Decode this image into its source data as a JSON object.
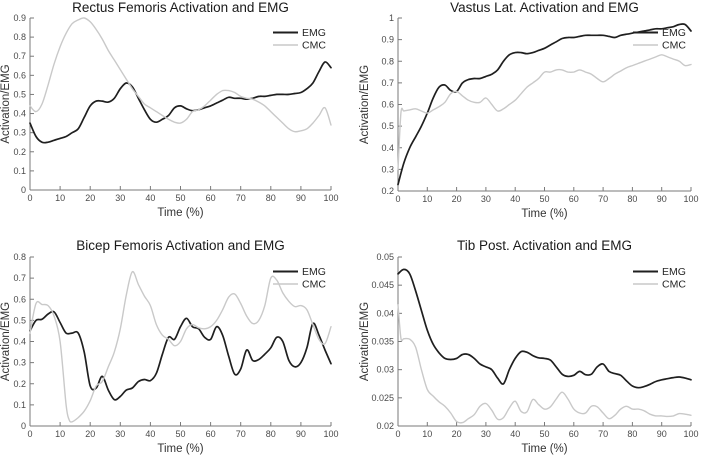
{
  "figure": {
    "background": "#ffffff",
    "layout": "2x2 grid of line charts",
    "colors": {
      "emg_line": "#1f1f1f",
      "cmc_line": "#c9c9c9",
      "axis": "#7a7a7a",
      "tick_label": "#4a4a4a",
      "title": "#1a1a1a"
    },
    "legend": {
      "position": "top-right",
      "box": false,
      "entries": [
        "EMG",
        "CMC"
      ]
    }
  },
  "chart_data": [
    {
      "type": "line",
      "title": "Rectus Femoris Activation and EMG",
      "xlabel": "Time (%)",
      "ylabel": "Activation/EMG",
      "xlim": [
        0,
        100
      ],
      "ylim": [
        0,
        0.9
      ],
      "xticks": [
        0,
        10,
        20,
        30,
        40,
        50,
        60,
        70,
        80,
        90,
        100
      ],
      "yticks": [
        0,
        0.1,
        0.2,
        0.3,
        0.4,
        0.5,
        0.6,
        0.7,
        0.8,
        0.9
      ],
      "grid": false,
      "legend_position": "top-right",
      "series": [
        {
          "name": "EMG",
          "color": "#1f1f1f",
          "x": [
            0,
            2,
            4,
            6,
            8,
            10,
            12,
            14,
            16,
            18,
            20,
            22,
            24,
            26,
            28,
            30,
            32,
            34,
            36,
            38,
            40,
            42,
            44,
            46,
            48,
            50,
            52,
            54,
            56,
            58,
            60,
            62,
            64,
            66,
            68,
            70,
            72,
            74,
            76,
            78,
            80,
            82,
            84,
            86,
            88,
            90,
            92,
            94,
            96,
            98,
            100
          ],
          "y": [
            0.35,
            0.28,
            0.25,
            0.25,
            0.26,
            0.27,
            0.28,
            0.3,
            0.32,
            0.38,
            0.44,
            0.465,
            0.465,
            0.46,
            0.48,
            0.53,
            0.56,
            0.54,
            0.48,
            0.42,
            0.37,
            0.355,
            0.37,
            0.39,
            0.43,
            0.44,
            0.425,
            0.415,
            0.42,
            0.43,
            0.44,
            0.455,
            0.47,
            0.485,
            0.48,
            0.48,
            0.475,
            0.48,
            0.49,
            0.49,
            0.495,
            0.5,
            0.5,
            0.5,
            0.505,
            0.51,
            0.53,
            0.56,
            0.62,
            0.67,
            0.64
          ]
        },
        {
          "name": "CMC",
          "color": "#c9c9c9",
          "x": [
            0,
            2,
            4,
            6,
            8,
            10,
            12,
            14,
            16,
            18,
            20,
            22,
            24,
            26,
            28,
            30,
            32,
            34,
            36,
            38,
            40,
            42,
            44,
            46,
            48,
            50,
            52,
            54,
            56,
            58,
            60,
            62,
            64,
            66,
            68,
            70,
            72,
            74,
            76,
            78,
            80,
            82,
            84,
            86,
            88,
            90,
            92,
            94,
            96,
            98,
            100
          ],
          "y": [
            0.44,
            0.41,
            0.45,
            0.55,
            0.66,
            0.75,
            0.82,
            0.87,
            0.89,
            0.9,
            0.88,
            0.84,
            0.79,
            0.73,
            0.68,
            0.63,
            0.58,
            0.53,
            0.49,
            0.45,
            0.43,
            0.41,
            0.39,
            0.37,
            0.355,
            0.35,
            0.37,
            0.41,
            0.42,
            0.44,
            0.47,
            0.5,
            0.52,
            0.52,
            0.51,
            0.49,
            0.48,
            0.475,
            0.46,
            0.44,
            0.41,
            0.38,
            0.35,
            0.32,
            0.305,
            0.31,
            0.32,
            0.35,
            0.39,
            0.43,
            0.34
          ]
        }
      ]
    },
    {
      "type": "line",
      "title": "Vastus Lat. Activation and EMG",
      "xlabel": "Time (%)",
      "ylabel": "Activation/EMG",
      "xlim": [
        0,
        100
      ],
      "ylim": [
        0.2,
        1
      ],
      "xticks": [
        0,
        10,
        20,
        30,
        40,
        50,
        60,
        70,
        80,
        90,
        100
      ],
      "yticks": [
        0.2,
        0.3,
        0.4,
        0.5,
        0.6,
        0.7,
        0.8,
        0.9,
        1
      ],
      "grid": false,
      "legend_position": "top-right",
      "series": [
        {
          "name": "EMG",
          "color": "#1f1f1f",
          "x": [
            0,
            2,
            4,
            6,
            8,
            10,
            12,
            14,
            16,
            18,
            20,
            22,
            24,
            26,
            28,
            30,
            32,
            34,
            36,
            38,
            40,
            42,
            44,
            46,
            48,
            50,
            52,
            54,
            56,
            58,
            60,
            62,
            64,
            66,
            68,
            70,
            72,
            74,
            76,
            78,
            80,
            82,
            84,
            86,
            88,
            90,
            92,
            94,
            96,
            98,
            100
          ],
          "y": [
            0.23,
            0.33,
            0.4,
            0.45,
            0.5,
            0.56,
            0.63,
            0.68,
            0.69,
            0.665,
            0.66,
            0.7,
            0.715,
            0.72,
            0.72,
            0.73,
            0.74,
            0.76,
            0.8,
            0.83,
            0.84,
            0.84,
            0.835,
            0.84,
            0.85,
            0.86,
            0.875,
            0.89,
            0.905,
            0.91,
            0.91,
            0.915,
            0.92,
            0.92,
            0.92,
            0.92,
            0.915,
            0.91,
            0.92,
            0.925,
            0.93,
            0.935,
            0.94,
            0.945,
            0.95,
            0.95,
            0.955,
            0.96,
            0.97,
            0.97,
            0.94
          ]
        },
        {
          "name": "CMC",
          "color": "#c9c9c9",
          "x": [
            0,
            1,
            2,
            4,
            6,
            8,
            10,
            12,
            14,
            16,
            18,
            20,
            22,
            24,
            26,
            28,
            30,
            32,
            34,
            36,
            38,
            40,
            42,
            44,
            46,
            48,
            50,
            52,
            54,
            56,
            58,
            60,
            62,
            64,
            66,
            68,
            70,
            72,
            74,
            76,
            78,
            80,
            82,
            84,
            86,
            88,
            90,
            92,
            94,
            96,
            98,
            100
          ],
          "y": [
            0.3,
            0.56,
            0.57,
            0.575,
            0.58,
            0.57,
            0.56,
            0.575,
            0.59,
            0.61,
            0.65,
            0.66,
            0.64,
            0.62,
            0.61,
            0.61,
            0.63,
            0.6,
            0.57,
            0.58,
            0.6,
            0.62,
            0.65,
            0.68,
            0.7,
            0.72,
            0.75,
            0.75,
            0.76,
            0.76,
            0.75,
            0.75,
            0.76,
            0.75,
            0.74,
            0.72,
            0.705,
            0.72,
            0.74,
            0.755,
            0.77,
            0.78,
            0.79,
            0.8,
            0.81,
            0.82,
            0.83,
            0.82,
            0.81,
            0.8,
            0.78,
            0.785
          ]
        }
      ]
    },
    {
      "type": "line",
      "title": "Bicep Femoris Activation and EMG",
      "xlabel": "Time (%)",
      "ylabel": "Activation/EMG",
      "xlim": [
        0,
        100
      ],
      "ylim": [
        0,
        0.8
      ],
      "xticks": [
        0,
        10,
        20,
        30,
        40,
        50,
        60,
        70,
        80,
        90,
        100
      ],
      "yticks": [
        0,
        0.1,
        0.2,
        0.3,
        0.4,
        0.5,
        0.6,
        0.7,
        0.8
      ],
      "grid": false,
      "legend_position": "top-right",
      "series": [
        {
          "name": "EMG",
          "color": "#1f1f1f",
          "x": [
            0,
            2,
            4,
            6,
            8,
            10,
            12,
            14,
            16,
            18,
            20,
            22,
            24,
            26,
            28,
            30,
            32,
            34,
            36,
            38,
            40,
            42,
            44,
            46,
            48,
            50,
            52,
            54,
            56,
            58,
            60,
            62,
            64,
            66,
            68,
            70,
            72,
            74,
            76,
            78,
            80,
            82,
            84,
            86,
            88,
            90,
            92,
            94,
            96,
            98,
            100
          ],
          "y": [
            0.45,
            0.5,
            0.505,
            0.53,
            0.54,
            0.49,
            0.44,
            0.44,
            0.44,
            0.35,
            0.19,
            0.18,
            0.235,
            0.17,
            0.125,
            0.14,
            0.17,
            0.18,
            0.21,
            0.22,
            0.215,
            0.25,
            0.34,
            0.42,
            0.41,
            0.47,
            0.51,
            0.47,
            0.46,
            0.42,
            0.41,
            0.47,
            0.43,
            0.33,
            0.245,
            0.27,
            0.36,
            0.31,
            0.315,
            0.34,
            0.37,
            0.42,
            0.4,
            0.31,
            0.28,
            0.3,
            0.37,
            0.485,
            0.43,
            0.36,
            0.295
          ]
        },
        {
          "name": "CMC",
          "color": "#c9c9c9",
          "x": [
            0,
            2,
            4,
            6,
            8,
            10,
            12,
            13,
            14,
            16,
            18,
            20,
            22,
            24,
            26,
            28,
            30,
            32,
            34,
            36,
            38,
            40,
            42,
            44,
            46,
            48,
            50,
            52,
            54,
            56,
            58,
            60,
            62,
            64,
            66,
            68,
            70,
            72,
            74,
            76,
            78,
            80,
            82,
            84,
            86,
            88,
            90,
            92,
            94,
            96,
            98,
            100
          ],
          "y": [
            0.44,
            0.58,
            0.575,
            0.57,
            0.52,
            0.4,
            0.1,
            0.03,
            0.02,
            0.04,
            0.07,
            0.12,
            0.19,
            0.21,
            0.28,
            0.35,
            0.46,
            0.62,
            0.73,
            0.67,
            0.615,
            0.57,
            0.48,
            0.43,
            0.41,
            0.38,
            0.4,
            0.46,
            0.48,
            0.465,
            0.46,
            0.47,
            0.5,
            0.55,
            0.61,
            0.625,
            0.58,
            0.52,
            0.485,
            0.5,
            0.57,
            0.7,
            0.69,
            0.63,
            0.59,
            0.565,
            0.57,
            0.55,
            0.48,
            0.41,
            0.39,
            0.47
          ]
        }
      ]
    },
    {
      "type": "line",
      "title": "Tib Post. Activation and EMG",
      "xlabel": "Time (%)",
      "ylabel": "Activation/EMG",
      "xlim": [
        0,
        100
      ],
      "ylim": [
        0.02,
        0.05
      ],
      "xticks": [
        0,
        10,
        20,
        30,
        40,
        50,
        60,
        70,
        80,
        90,
        100
      ],
      "yticks": [
        0.02,
        0.025,
        0.03,
        0.035,
        0.04,
        0.045,
        0.05
      ],
      "grid": false,
      "legend_position": "top-right",
      "series": [
        {
          "name": "EMG",
          "color": "#1f1f1f",
          "x": [
            0,
            2,
            4,
            6,
            8,
            10,
            12,
            14,
            16,
            18,
            20,
            22,
            24,
            26,
            28,
            30,
            32,
            34,
            36,
            38,
            40,
            42,
            44,
            46,
            48,
            50,
            52,
            54,
            56,
            58,
            60,
            62,
            64,
            66,
            68,
            70,
            72,
            74,
            76,
            78,
            80,
            82,
            84,
            86,
            88,
            90,
            92,
            94,
            96,
            98,
            100
          ],
          "y": [
            0.047,
            0.0478,
            0.047,
            0.044,
            0.0405,
            0.037,
            0.0345,
            0.033,
            0.032,
            0.0318,
            0.032,
            0.0327,
            0.0327,
            0.032,
            0.031,
            0.0305,
            0.03,
            0.0285,
            0.0275,
            0.03,
            0.032,
            0.0332,
            0.0331,
            0.0325,
            0.0321,
            0.032,
            0.0317,
            0.0305,
            0.0292,
            0.0288,
            0.029,
            0.0297,
            0.0291,
            0.0292,
            0.0305,
            0.031,
            0.0297,
            0.0293,
            0.029,
            0.028,
            0.0271,
            0.0268,
            0.027,
            0.0274,
            0.0279,
            0.0282,
            0.0284,
            0.0286,
            0.0287,
            0.0285,
            0.0282
          ]
        },
        {
          "name": "CMC",
          "color": "#c9c9c9",
          "x": [
            0,
            1,
            2,
            4,
            6,
            8,
            10,
            12,
            14,
            16,
            18,
            20,
            22,
            24,
            26,
            28,
            30,
            32,
            34,
            36,
            38,
            40,
            42,
            44,
            46,
            48,
            50,
            52,
            54,
            56,
            58,
            60,
            62,
            64,
            66,
            68,
            70,
            72,
            74,
            76,
            78,
            80,
            82,
            84,
            86,
            88,
            90,
            92,
            94,
            96,
            98,
            100
          ],
          "y": [
            0.0415,
            0.0356,
            0.0355,
            0.0354,
            0.034,
            0.03,
            0.0265,
            0.0253,
            0.0243,
            0.0235,
            0.0223,
            0.0208,
            0.0206,
            0.0213,
            0.022,
            0.0235,
            0.024,
            0.0228,
            0.0212,
            0.0215,
            0.0232,
            0.0244,
            0.0226,
            0.0225,
            0.0247,
            0.0238,
            0.023,
            0.0234,
            0.0248,
            0.026,
            0.0248,
            0.023,
            0.0223,
            0.0223,
            0.0235,
            0.0234,
            0.0223,
            0.0213,
            0.0219,
            0.023,
            0.0235,
            0.023,
            0.023,
            0.0227,
            0.0221,
            0.0218,
            0.0218,
            0.0217,
            0.0218,
            0.0222,
            0.0221,
            0.0219
          ]
        }
      ]
    }
  ]
}
